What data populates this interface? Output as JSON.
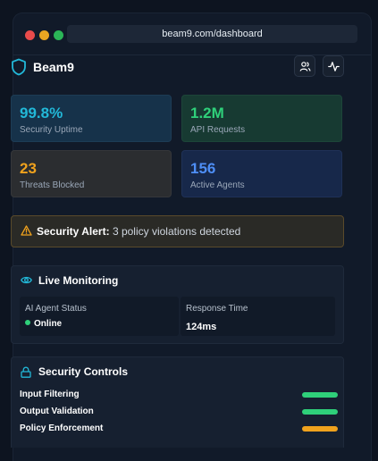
{
  "browser": {
    "url": "beam9.com/dashboard"
  },
  "header": {
    "brand": "Beam9",
    "icons": {
      "brand": "shield-icon",
      "users": "users-icon",
      "activity": "activity-icon"
    }
  },
  "stats": [
    {
      "value": "99.8%",
      "label": "Security Uptime",
      "color": "#22b8d8"
    },
    {
      "value": "1.2M",
      "label": "API Requests",
      "color": "#2fd07a"
    },
    {
      "value": "23",
      "label": "Threats Blocked",
      "color": "#f0a21d"
    },
    {
      "value": "156",
      "label": "Active Agents",
      "color": "#4e8ef6"
    }
  ],
  "alert": {
    "title": "Security Alert:",
    "message": "3 policy violations detected",
    "icon": "warning-triangle-icon"
  },
  "monitoring": {
    "title": "Live Monitoring",
    "icon": "eye-icon",
    "agent_status_label": "AI Agent Status",
    "agent_status_value": "Online",
    "response_time_label": "Response Time",
    "response_time_value": "124ms"
  },
  "controls": {
    "title": "Security Controls",
    "icon": "lock-icon",
    "items": [
      {
        "name": "Input Filtering",
        "status_color": "#2fd07a"
      },
      {
        "name": "Output Validation",
        "status_color": "#2fd07a"
      },
      {
        "name": "Policy Enforcement",
        "status_color": "#f0a21d"
      }
    ]
  },
  "colors": {
    "accent": "#22b8d8",
    "success": "#2fd07a",
    "warning": "#f0a21d",
    "info": "#4e8ef6"
  }
}
